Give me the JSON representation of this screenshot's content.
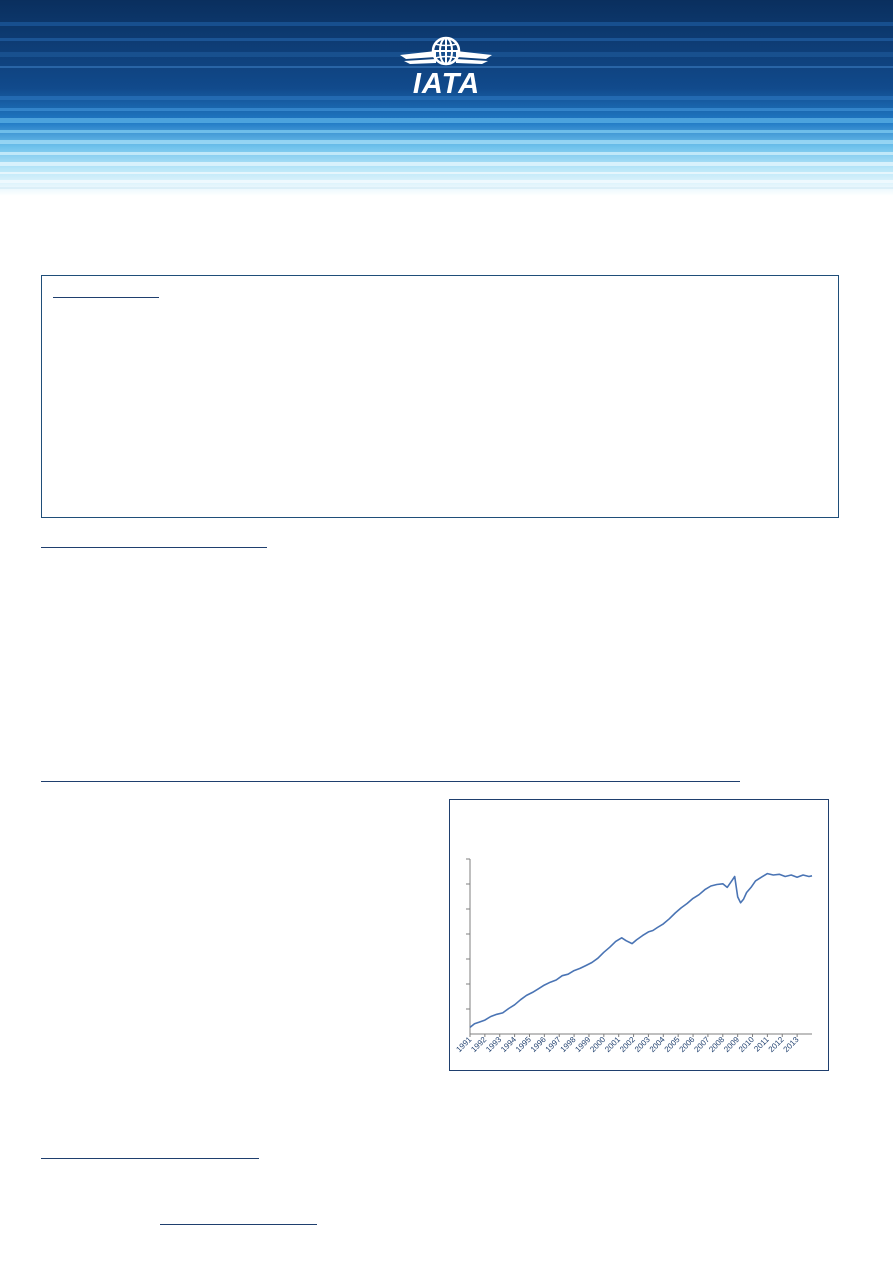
{
  "header": {
    "logo_text": "IATA",
    "colors": {
      "dark_navy": "#0b3466",
      "mid_blue": "#1a5fa8",
      "light_blue": "#a6dcf5"
    }
  },
  "chart_data": {
    "type": "line",
    "x_tick_labels": [
      "1991",
      "1992",
      "1993",
      "1994",
      "1995",
      "1996",
      "1997",
      "1998",
      "1999",
      "2000",
      "2001",
      "2002",
      "2003",
      "2004",
      "2005",
      "2006",
      "2007",
      "2008",
      "2009",
      "2010",
      "2011",
      "2012",
      "2013"
    ],
    "xlim": [
      1991,
      2014
    ],
    "y_tick_count": 7,
    "series": [
      {
        "color": "#4a74b4",
        "x": [
          1991.0,
          1991.3,
          1991.6,
          1992.0,
          1992.4,
          1992.8,
          1993.2,
          1993.6,
          1994.0,
          1994.4,
          1994.8,
          1995.2,
          1995.6,
          1996.0,
          1996.4,
          1996.8,
          1997.2,
          1997.6,
          1998.0,
          1998.4,
          1998.8,
          1999.2,
          1999.6,
          2000.0,
          2000.4,
          2000.8,
          2001.2,
          2001.5,
          2001.9,
          2002.2,
          2002.6,
          2003.0,
          2003.3,
          2003.6,
          2004.0,
          2004.4,
          2004.8,
          2005.2,
          2005.6,
          2006.0,
          2006.4,
          2006.8,
          2007.2,
          2007.6,
          2008.0,
          2008.3,
          2008.6,
          2008.8,
          2009.0,
          2009.2,
          2009.4,
          2009.6,
          2009.9,
          2010.2,
          2010.6,
          2011.0,
          2011.4,
          2011.8,
          2012.2,
          2012.6,
          2013.0,
          2013.4,
          2013.8,
          2014.0
        ],
        "y": [
          9,
          14,
          16,
          19,
          24,
          27,
          29,
          35,
          40,
          47,
          53,
          57,
          62,
          67,
          71,
          74,
          80,
          82,
          87,
          90,
          94,
          98,
          104,
          112,
          119,
          127,
          132,
          128,
          124,
          129,
          135,
          140,
          142,
          146,
          151,
          158,
          166,
          173,
          179,
          186,
          191,
          198,
          203,
          205,
          206,
          201,
          210,
          216,
          188,
          180,
          185,
          194,
          201,
          210,
          215,
          220,
          218,
          219,
          216,
          218,
          215,
          218,
          216,
          217
        ]
      }
    ],
    "ylim": [
      0,
      240
    ]
  }
}
